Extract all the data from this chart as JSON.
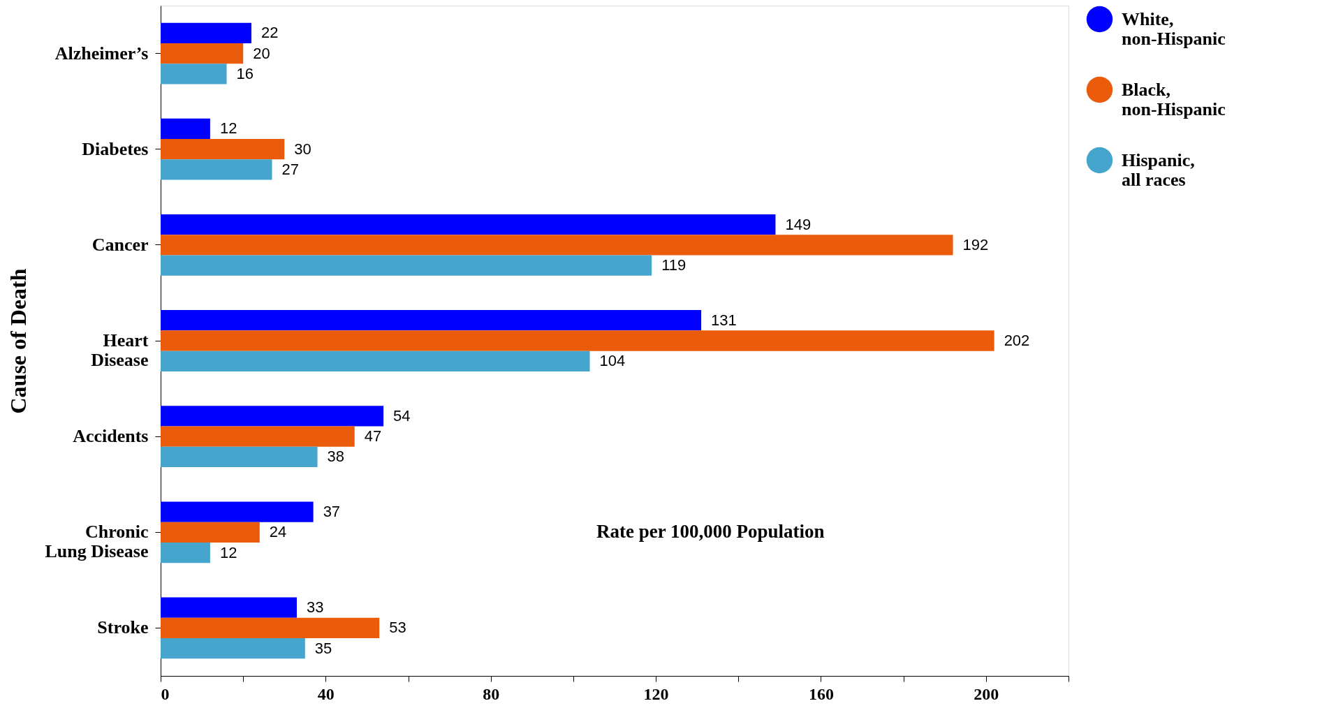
{
  "chart_data": {
    "type": "bar",
    "orientation": "horizontal",
    "ylabel": "Cause of Death",
    "xlabel": "Rate per 100,000 Population",
    "categories": [
      "Alzheimer’s",
      "Diabetes",
      "Cancer",
      "Heart\nDisease",
      "Accidents",
      "Chronic\nLung Disease",
      "Stroke"
    ],
    "series": [
      {
        "name": "White,\nnon-Hispanic",
        "color": "#0000ff",
        "values": [
          22,
          12,
          149,
          131,
          54,
          37,
          33
        ]
      },
      {
        "name": "Black,\nnon-Hispanic",
        "color": "#ea5b0c",
        "values": [
          20,
          30,
          192,
          202,
          47,
          24,
          53
        ]
      },
      {
        "name": "Hispanic,\nall races",
        "color": "#46a5cd",
        "values": [
          16,
          27,
          119,
          104,
          38,
          12,
          35
        ]
      }
    ],
    "xlim": [
      0,
      220
    ],
    "xticks": [
      0,
      {
        "value": 20,
        "label": null
      },
      40,
      {
        "value": 60,
        "label": null
      },
      80,
      {
        "value": 100,
        "label": null
      },
      120,
      {
        "value": 140,
        "label": null
      },
      160,
      {
        "value": 180,
        "label": null
      },
      200,
      {
        "value": 220,
        "label": null
      }
    ],
    "data_labels": true,
    "legend": "right",
    "grid": false
  }
}
